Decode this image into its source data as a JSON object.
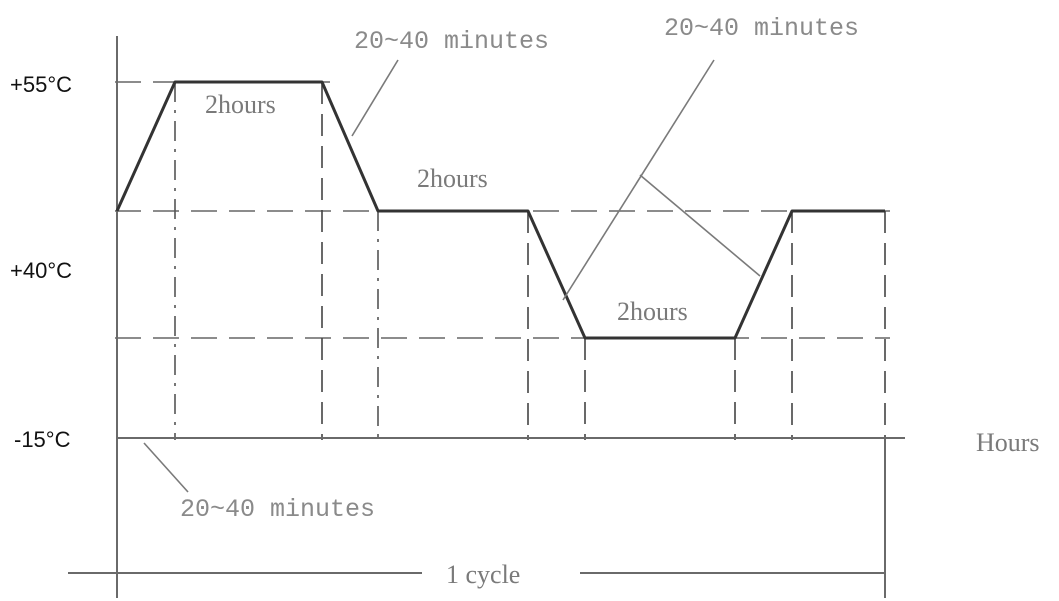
{
  "temperature_labels": {
    "high": "+55°C",
    "mid": "+40°C",
    "low": "-15°C"
  },
  "x_axis_label": "Hours",
  "cycle_label": "1 cycle",
  "dwell_labels": {
    "high_dwell": "2hours",
    "mid_dwell": "2hours",
    "low_dwell": "2hours"
  },
  "ramp_labels": {
    "ramp_down_top": "20~40 minutes",
    "ramp_up_low": "20~40 minutes",
    "start_ramp": "20~40 minutes"
  }
}
